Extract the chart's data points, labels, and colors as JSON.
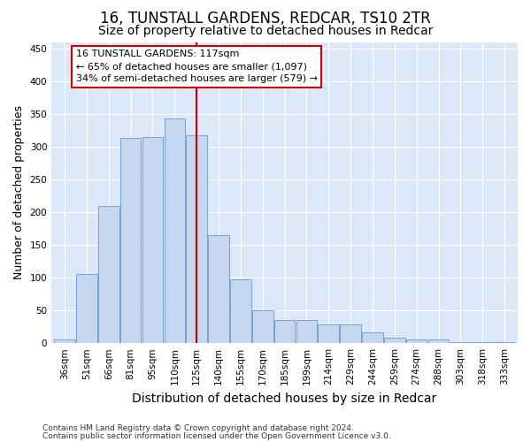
{
  "title": "16, TUNSTALL GARDENS, REDCAR, TS10 2TR",
  "subtitle": "Size of property relative to detached houses in Redcar",
  "xlabel": "Distribution of detached houses by size in Redcar",
  "ylabel": "Number of detached properties",
  "categories": [
    "36sqm",
    "51sqm",
    "66sqm",
    "81sqm",
    "95sqm",
    "110sqm",
    "125sqm",
    "140sqm",
    "155sqm",
    "170sqm",
    "185sqm",
    "199sqm",
    "214sqm",
    "229sqm",
    "244sqm",
    "259sqm",
    "274sqm",
    "288sqm",
    "303sqm",
    "318sqm",
    "333sqm"
  ],
  "values": [
    5,
    106,
    210,
    313,
    315,
    343,
    318,
    165,
    97,
    50,
    35,
    35,
    29,
    29,
    17,
    9,
    5,
    5,
    2,
    1,
    1
  ],
  "bar_color": "#c5d8f0",
  "bar_edge_color": "#6699cc",
  "vline_x_idx": 6,
  "vline_color": "#cc0000",
  "annotation_line1": "16 TUNSTALL GARDENS: 117sqm",
  "annotation_line2": "← 65% of detached houses are smaller (1,097)",
  "annotation_line3": "34% of semi-detached houses are larger (579) →",
  "annotation_box_color": "#ffffff",
  "annotation_box_edge": "#cc0000",
  "ylim": [
    0,
    460
  ],
  "yticks": [
    0,
    50,
    100,
    150,
    200,
    250,
    300,
    350,
    400,
    450
  ],
  "footer_line1": "Contains HM Land Registry data © Crown copyright and database right 2024.",
  "footer_line2": "Contains public sector information licensed under the Open Government Licence v3.0.",
  "background_color": "#ffffff",
  "plot_background": "#dce8f8",
  "grid_color": "#ffffff",
  "title_fontsize": 12,
  "subtitle_fontsize": 10,
  "tick_fontsize": 7.5,
  "ylabel_fontsize": 9,
  "xlabel_fontsize": 10,
  "footer_fontsize": 6.5
}
